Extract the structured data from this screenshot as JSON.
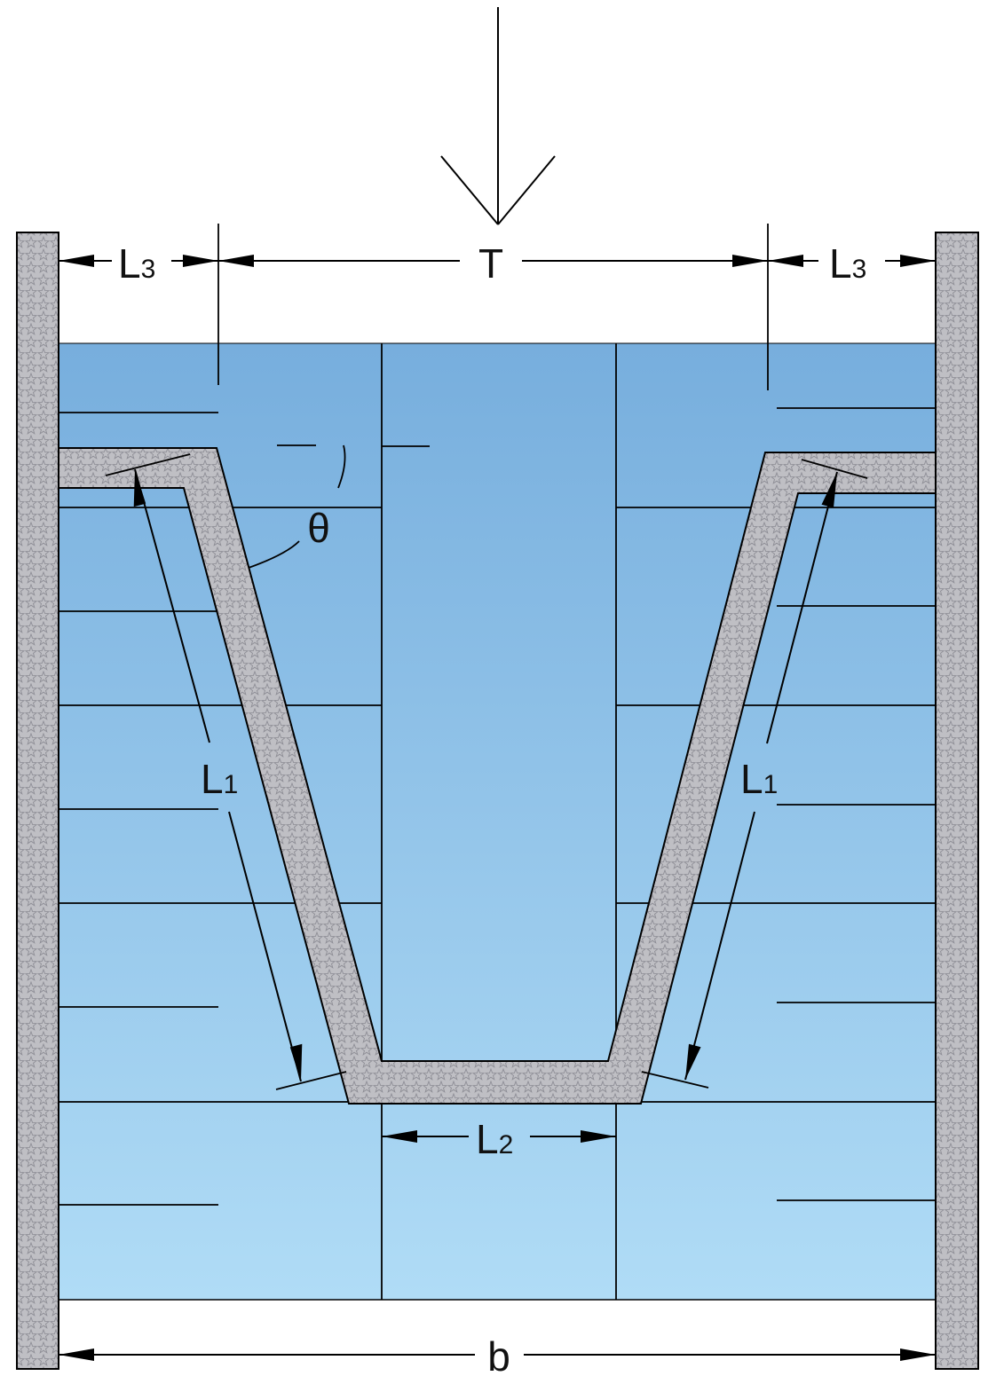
{
  "labels": {
    "load": "T",
    "width": "b",
    "angle": "θ",
    "top_left": {
      "main": "L",
      "sub": "3"
    },
    "top_right": {
      "main": "L",
      "sub": "3"
    },
    "web_left": {
      "main": "L",
      "sub": "1"
    },
    "web_right": {
      "main": "L",
      "sub": "1"
    },
    "bottom": {
      "main": "L",
      "sub": "2"
    }
  },
  "colors": {
    "fill_top": "#77aedd",
    "fill_bottom": "#b0dcf6",
    "wall": "#bfbfc4",
    "wall_pattern": "#8e8e96",
    "line": "#000000"
  }
}
